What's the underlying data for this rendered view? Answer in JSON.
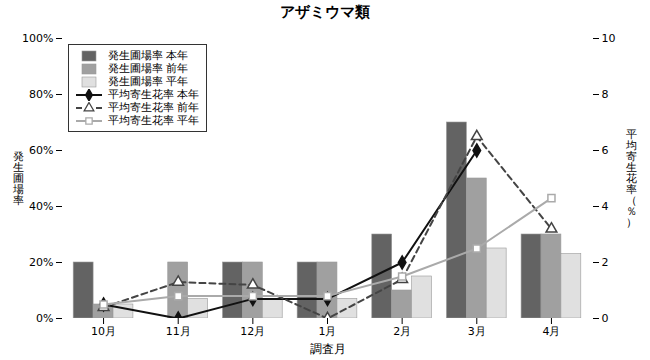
{
  "chart_data": {
    "type": "bar",
    "title": "アザミウマ類",
    "xlabel": "調査月",
    "ylabel": "発\n生\n圃\n場\n率",
    "y2label": "平\n均\n寄\n生\n花\n率\n（\n％\n）",
    "categories": [
      "10月",
      "11月",
      "12月",
      "1月",
      "2月",
      "3月",
      "4月"
    ],
    "series": [
      {
        "name": "発生圃場率 本年",
        "type": "bar",
        "color": "#636363",
        "values": [
          20,
          0,
          20,
          20,
          30,
          70,
          30
        ]
      },
      {
        "name": "発生圃場率 前年",
        "type": "bar",
        "color": "#a0a0a0",
        "values": [
          5,
          20,
          20,
          20,
          10,
          50,
          30
        ]
      },
      {
        "name": "発生圃場率 平年",
        "type": "bar",
        "color": "#e0e0e0",
        "values": [
          5,
          7,
          7,
          7,
          15,
          25,
          23
        ]
      },
      {
        "name": "平均寄生花率 本年",
        "type": "line",
        "axis": "y2",
        "color": "#111111",
        "marker": "diamond",
        "line_style": "solid",
        "values": [
          0.5,
          0.0,
          0.7,
          0.7,
          2.0,
          6.0,
          null
        ]
      },
      {
        "name": "平均寄生花率 前年",
        "type": "line",
        "axis": "y2",
        "color": "#444444",
        "marker": "triangle_open",
        "line_style": "dashed",
        "values": [
          0.4,
          1.3,
          1.2,
          0.0,
          1.4,
          6.5,
          3.2
        ]
      },
      {
        "name": "平均寄生花率 平年",
        "type": "line",
        "axis": "y2",
        "color": "#aaaaaa",
        "marker": "square_open",
        "line_style": "solid",
        "values": [
          0.5,
          0.8,
          0.8,
          0.8,
          1.5,
          2.5,
          4.3
        ]
      }
    ],
    "ylim": [
      0,
      100
    ],
    "yticks": [
      {
        "value": 0,
        "label": "0%"
      },
      {
        "value": 20,
        "label": "20%"
      },
      {
        "value": 40,
        "label": "40%"
      },
      {
        "value": 60,
        "label": "60%"
      },
      {
        "value": 80,
        "label": "80%"
      },
      {
        "value": 100,
        "label": "100%"
      }
    ],
    "y2lim": [
      0,
      10
    ],
    "y2ticks": [
      0,
      2,
      4,
      6,
      8,
      10
    ],
    "grid": false,
    "legend": "upper left"
  }
}
